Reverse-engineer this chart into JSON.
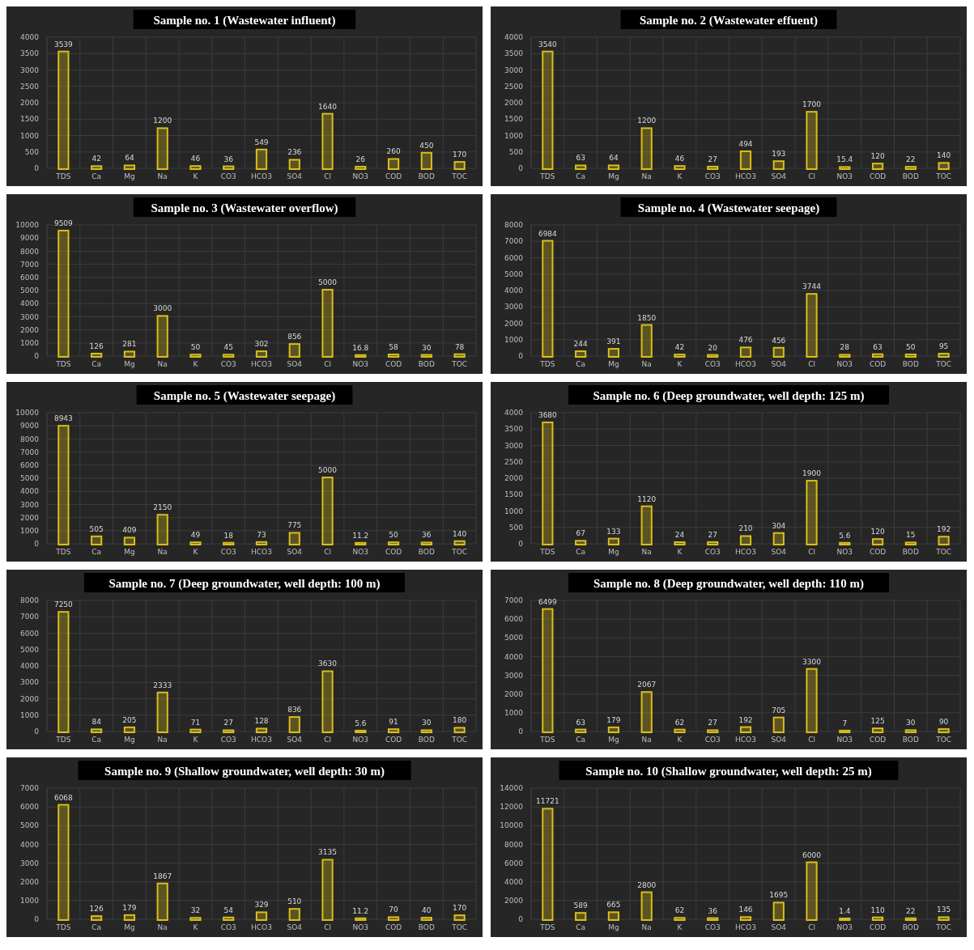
{
  "chart_data": [
    {
      "type": "bar",
      "title": "Sample no. 1 (Wastewater influent)",
      "categories": [
        "TDS",
        "Ca",
        "Mg",
        "Na",
        "K",
        "CO3",
        "HCO3",
        "SO4",
        "Cl",
        "NO3",
        "COD",
        "BOD",
        "TOC"
      ],
      "values": [
        3539,
        42,
        64,
        1200,
        46,
        36,
        549,
        236,
        1640,
        26,
        260,
        450,
        170
      ],
      "color": "#d9be1a",
      "ylim": [
        0,
        4000
      ],
      "yticks": [
        0,
        500,
        1000,
        1500,
        2000,
        2500,
        3000,
        3500,
        4000
      ],
      "grid": true,
      "data_labels": true
    },
    {
      "type": "bar",
      "title": "Sample no. 2 (Wastewater effuent)",
      "categories": [
        "TDS",
        "Ca",
        "Mg",
        "Na",
        "K",
        "CO3",
        "HCO3",
        "SO4",
        "Cl",
        "NO3",
        "COD",
        "BOD",
        "TOC"
      ],
      "values": [
        3540,
        63,
        64,
        1200,
        46,
        27,
        494,
        193,
        1700,
        15.4,
        120,
        22,
        140
      ],
      "color": "#d9be1a",
      "ylim": [
        0,
        4000
      ],
      "yticks": [
        0,
        500,
        1000,
        1500,
        2000,
        2500,
        3000,
        3500,
        4000
      ],
      "grid": true,
      "data_labels": true
    },
    {
      "type": "bar",
      "title": "Sample no. 3 (Wastewater overflow)",
      "categories": [
        "TDS",
        "Ca",
        "Mg",
        "Na",
        "K",
        "CO3",
        "HCO3",
        "SO4",
        "Cl",
        "NO3",
        "COD",
        "BOD",
        "TOC"
      ],
      "values": [
        9509,
        126,
        281,
        3000,
        50,
        45,
        302,
        856,
        5000,
        16.8,
        58,
        30,
        78
      ],
      "color": "#d9be1a",
      "ylim": [
        0,
        10000
      ],
      "yticks": [
        0,
        1000,
        2000,
        3000,
        4000,
        5000,
        6000,
        7000,
        8000,
        9000,
        10000
      ],
      "grid": true,
      "data_labels": true
    },
    {
      "type": "bar",
      "title": "Sample no. 4 (Wastewater seepage)",
      "categories": [
        "TDS",
        "Ca",
        "Mg",
        "Na",
        "K",
        "CO3",
        "HCO3",
        "SO4",
        "Cl",
        "NO3",
        "COD",
        "BOD",
        "TOC"
      ],
      "values": [
        6984,
        244,
        391,
        1850,
        42,
        20,
        476,
        456,
        3744,
        28,
        63,
        50,
        95
      ],
      "color": "#d9be1a",
      "ylim": [
        0,
        8000
      ],
      "yticks": [
        0,
        1000,
        2000,
        3000,
        4000,
        5000,
        6000,
        7000,
        8000
      ],
      "grid": true,
      "data_labels": true
    },
    {
      "type": "bar",
      "title": "Sample no. 5 (Wastewater seepage)",
      "categories": [
        "TDS",
        "Ca",
        "Mg",
        "Na",
        "K",
        "CO3",
        "HCO3",
        "SO4",
        "Cl",
        "NO3",
        "COD",
        "BOD",
        "TOC"
      ],
      "values": [
        8943,
        505,
        409,
        2150,
        49,
        18,
        73,
        775,
        5000,
        11.2,
        50,
        36,
        140
      ],
      "color": "#d9be1a",
      "ylim": [
        0,
        10000
      ],
      "yticks": [
        0,
        1000,
        2000,
        3000,
        4000,
        5000,
        6000,
        7000,
        8000,
        9000,
        10000
      ],
      "grid": true,
      "data_labels": true
    },
    {
      "type": "bar",
      "title": "Sample no. 6 (Deep groundwater, well depth: 125 m)",
      "categories": [
        "TDS",
        "Ca",
        "Mg",
        "Na",
        "K",
        "CO3",
        "HCO3",
        "SO4",
        "Cl",
        "NO3",
        "COD",
        "BOD",
        "TOC"
      ],
      "values": [
        3680,
        67,
        133,
        1120,
        24,
        27,
        210,
        304,
        1900,
        5.6,
        120,
        15,
        192
      ],
      "color": "#d9be1a",
      "ylim": [
        0,
        4000
      ],
      "yticks": [
        0,
        500,
        1000,
        1500,
        2000,
        2500,
        3000,
        3500,
        4000
      ],
      "grid": true,
      "data_labels": true
    },
    {
      "type": "bar",
      "title": "Sample no. 7 (Deep groundwater, well depth: 100 m)",
      "categories": [
        "TDS",
        "Ca",
        "Mg",
        "Na",
        "K",
        "CO3",
        "HCO3",
        "SO4",
        "Cl",
        "NO3",
        "COD",
        "BOD",
        "TOC"
      ],
      "values": [
        7250,
        84,
        205,
        2333,
        71,
        27,
        128,
        836,
        3630,
        5.6,
        91,
        30,
        180
      ],
      "color": "#d9be1a",
      "ylim": [
        0,
        8000
      ],
      "yticks": [
        0,
        1000,
        2000,
        3000,
        4000,
        5000,
        6000,
        7000,
        8000
      ],
      "grid": true,
      "data_labels": true
    },
    {
      "type": "bar",
      "title": "Sample no. 8 (Deep groundwater, well depth: 110 m)",
      "categories": [
        "TDS",
        "Ca",
        "Mg",
        "Na",
        "K",
        "CO3",
        "HCO3",
        "SO4",
        "Cl",
        "NO3",
        "COD",
        "BOD",
        "TOC"
      ],
      "values": [
        6499,
        63,
        179,
        2067,
        62,
        27,
        192,
        705,
        3300,
        7,
        125,
        30,
        90
      ],
      "color": "#d9be1a",
      "ylim": [
        0,
        7000
      ],
      "yticks": [
        0,
        1000,
        2000,
        3000,
        4000,
        5000,
        6000,
        7000
      ],
      "grid": true,
      "data_labels": true
    },
    {
      "type": "bar",
      "title": "Sample no. 9 (Shallow groundwater, well depth: 30 m)",
      "categories": [
        "TDS",
        "Ca",
        "Mg",
        "Na",
        "K",
        "CO3",
        "HCO3",
        "SO4",
        "Cl",
        "NO3",
        "COD",
        "BOD",
        "TOC"
      ],
      "values": [
        6068,
        126,
        179,
        1867,
        32,
        54,
        329,
        510,
        3135,
        11.2,
        70,
        40,
        170
      ],
      "color": "#d9be1a",
      "ylim": [
        0,
        7000
      ],
      "yticks": [
        0,
        1000,
        2000,
        3000,
        4000,
        5000,
        6000,
        7000
      ],
      "grid": true,
      "data_labels": true
    },
    {
      "type": "bar",
      "title": "Sample no. 10 (Shallow groundwater, well depth: 25 m)",
      "categories": [
        "TDS",
        "Ca",
        "Mg",
        "Na",
        "K",
        "CO3",
        "HCO3",
        "SO4",
        "Cl",
        "NO3",
        "COD",
        "BOD",
        "TOC"
      ],
      "values": [
        11721,
        589,
        665,
        2800,
        62,
        36,
        146,
        1695,
        6000,
        1.4,
        110,
        22,
        135
      ],
      "color": "#d9be1a",
      "ylim": [
        0,
        14000
      ],
      "yticks": [
        0,
        2000,
        4000,
        6000,
        8000,
        10000,
        12000,
        14000
      ],
      "grid": true,
      "data_labels": true
    }
  ]
}
